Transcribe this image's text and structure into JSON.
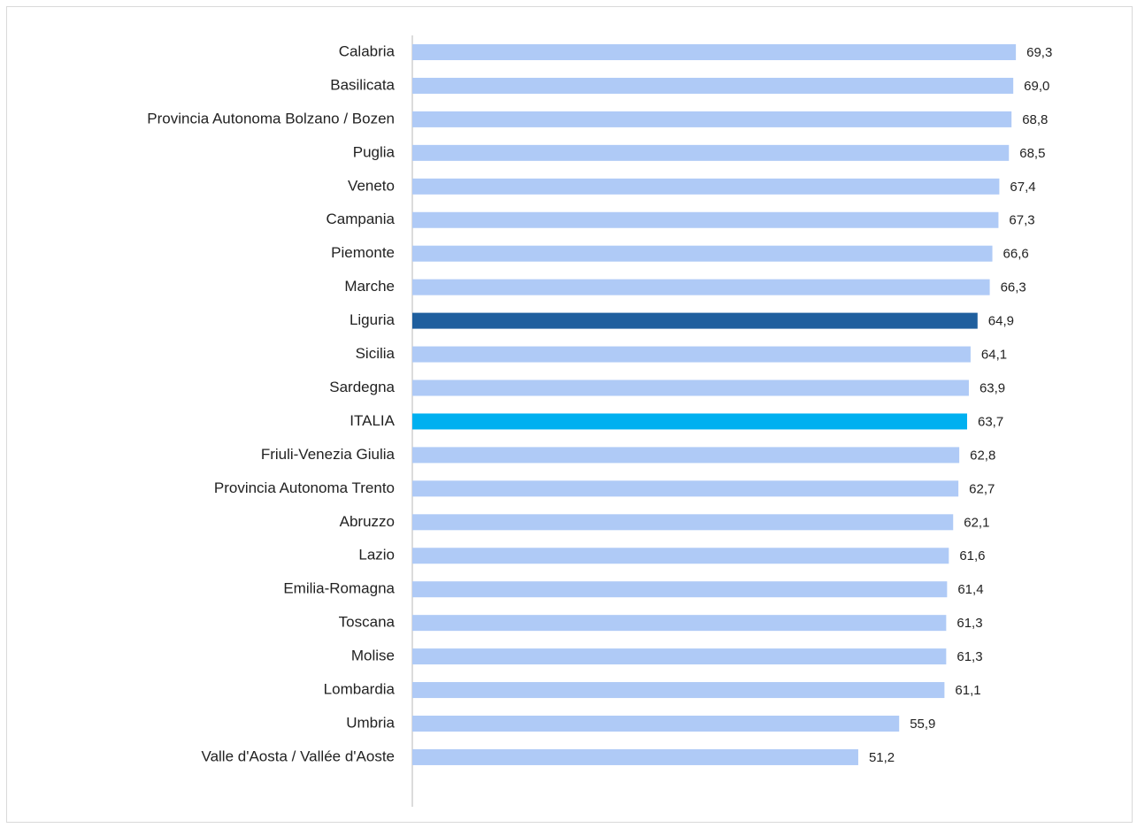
{
  "chart_data": {
    "type": "barh",
    "categories": [
      "Calabria",
      "Basilicata",
      "Provincia Autonoma Bolzano / Bozen",
      "Puglia",
      "Veneto",
      "Campania",
      "Piemonte",
      "Marche",
      "Liguria",
      "Sicilia",
      "Sardegna",
      "ITALIA",
      "Friuli-Venezia Giulia",
      "Provincia Autonoma Trento",
      "Abruzzo",
      "Lazio",
      "Emilia-Romagna",
      "Toscana",
      "Molise",
      "Lombardia",
      "Umbria",
      "Valle d'Aosta / Vallée d'Aoste"
    ],
    "values": [
      69.3,
      69.0,
      68.8,
      68.5,
      67.4,
      67.3,
      66.6,
      66.3,
      64.9,
      64.1,
      63.9,
      63.7,
      62.8,
      62.7,
      62.1,
      61.6,
      61.4,
      61.3,
      61.3,
      61.1,
      55.9,
      51.2
    ],
    "value_labels": [
      "69,3",
      "69,0",
      "68,8",
      "68,5",
      "67,4",
      "67,3",
      "66,6",
      "66,3",
      "64,9",
      "64,1",
      "63,9",
      "63,7",
      "62,8",
      "62,7",
      "62,1",
      "61,6",
      "61,4",
      "61,3",
      "61,3",
      "61,1",
      "55,9",
      "51,2"
    ],
    "colors": [
      "#afcaf6",
      "#afcaf6",
      "#afcaf6",
      "#afcaf6",
      "#afcaf6",
      "#afcaf6",
      "#afcaf6",
      "#afcaf6",
      "#1f5f9e",
      "#afcaf6",
      "#afcaf6",
      "#00b0f0",
      "#afcaf6",
      "#afcaf6",
      "#afcaf6",
      "#afcaf6",
      "#afcaf6",
      "#afcaf6",
      "#afcaf6",
      "#afcaf6",
      "#afcaf6",
      "#afcaf6"
    ],
    "xlim": [
      0,
      70
    ]
  }
}
